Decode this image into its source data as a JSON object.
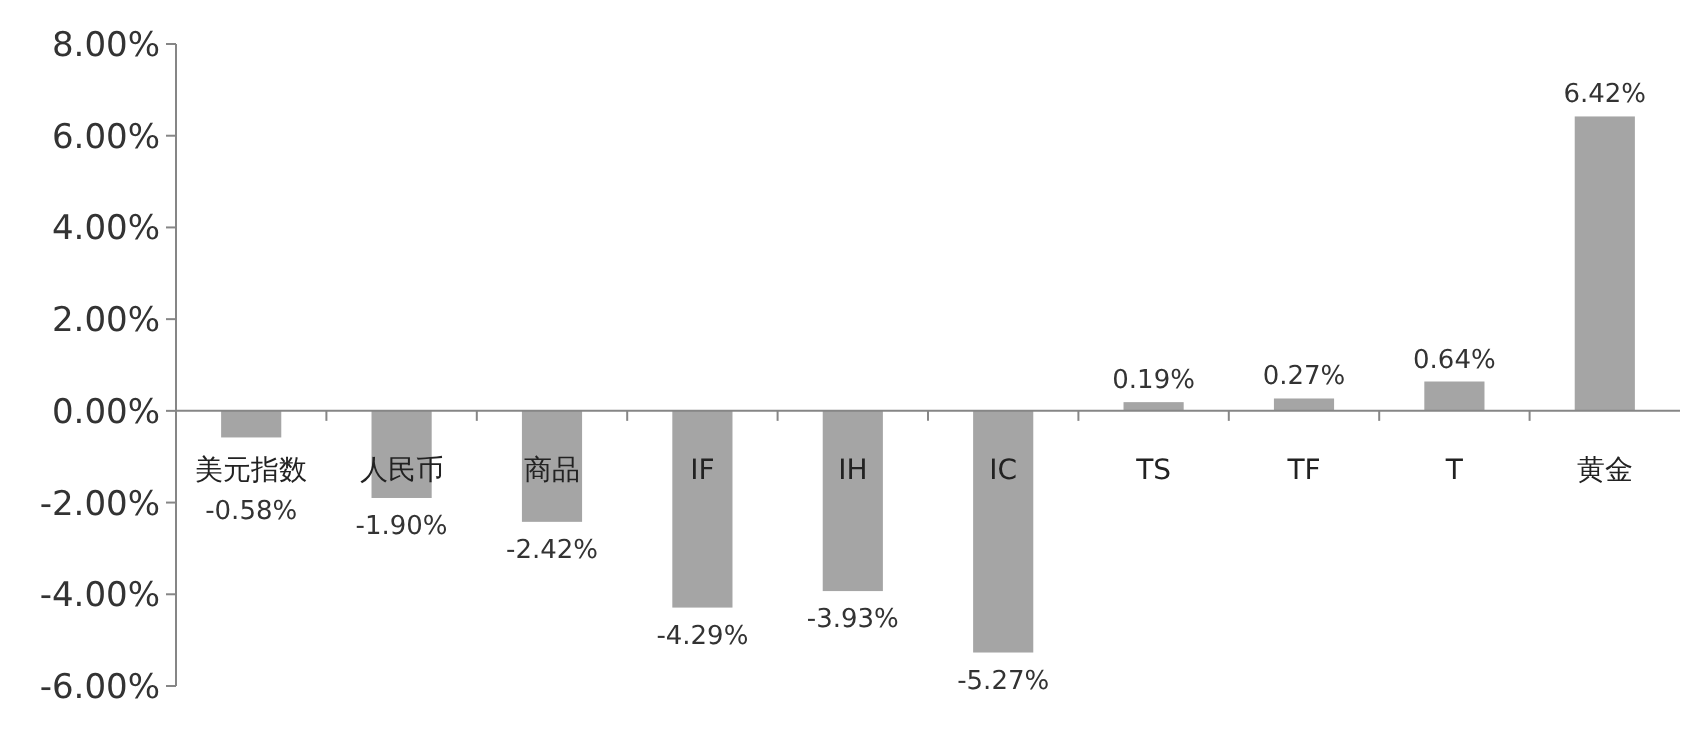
{
  "chart_data": {
    "type": "bar",
    "categories": [
      "美元指数",
      "人民币",
      "商品",
      "IF",
      "IH",
      "IC",
      "TS",
      "TF",
      "T",
      "黄金"
    ],
    "values": [
      -0.58,
      -1.9,
      -2.42,
      -4.29,
      -3.93,
      -5.27,
      0.19,
      0.27,
      0.64,
      6.42
    ],
    "value_labels": [
      "-0.58%",
      "-1.90%",
      "-2.42%",
      "-4.29%",
      "-3.93%",
      "-5.27%",
      "0.19%",
      "0.27%",
      "0.64%",
      "6.42%"
    ],
    "color": "#a5a5a5",
    "ylim": [
      -6,
      8
    ],
    "yticks": [
      {
        "value": -6,
        "label": "-6.00%"
      },
      {
        "value": -4,
        "label": "-4.00%"
      },
      {
        "value": -2,
        "label": "-2.00%"
      },
      {
        "value": 0,
        "label": "0.00%"
      },
      {
        "value": 2,
        "label": "2.00%"
      },
      {
        "value": 4,
        "label": "4.00%"
      },
      {
        "value": 6,
        "label": "6.00%"
      },
      {
        "value": 8,
        "label": "8.00%"
      }
    ],
    "grid": false
  }
}
